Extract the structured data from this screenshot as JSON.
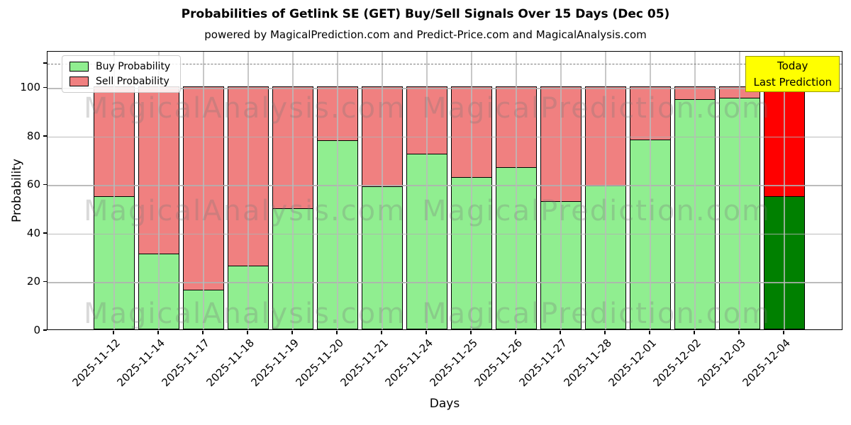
{
  "chart_data": {
    "type": "bar",
    "stacked": true,
    "title": "Probabilities of Getlink SE (GET) Buy/Sell Signals Over 15 Days (Dec 05)",
    "subtitle": "powered by MagicalPrediction.com and Predict-Price.com and MagicalAnalysis.com",
    "xlabel": "Days",
    "ylabel": "Probability",
    "categories": [
      "2025-11-12",
      "2025-11-14",
      "2025-11-17",
      "2025-11-18",
      "2025-11-19",
      "2025-11-20",
      "2025-11-21",
      "2025-11-24",
      "2025-11-25",
      "2025-11-26",
      "2025-11-27",
      "2025-11-28",
      "2025-12-01",
      "2025-12-02",
      "2025-12-03",
      "2025-12-04"
    ],
    "series": [
      {
        "name": "Buy Probability",
        "color": "#90EE90",
        "values": [
          55,
          31.5,
          16.5,
          26.5,
          50,
          78,
          59,
          72.5,
          63,
          67,
          53,
          59.5,
          78.5,
          95,
          95.5,
          55
        ]
      },
      {
        "name": "Sell Probability",
        "color": "#F08080",
        "values": [
          45,
          68.5,
          83.5,
          73.5,
          50,
          22,
          41,
          27.5,
          37,
          33,
          47,
          40.5,
          21.5,
          5,
          4.5,
          45
        ]
      }
    ],
    "today_bar": {
      "category": "2025-12-04",
      "buy_color": "#008000",
      "sell_color": "#FF0000"
    },
    "annotation": {
      "line1": "Today",
      "line2": "Last Prediction",
      "bg_color": "#FFFF00"
    },
    "watermarks": {
      "left": "MagicalAnalysis.com",
      "right": "MagicalPrediction.com"
    },
    "ylim": [
      0,
      115
    ],
    "yticks": [
      0,
      20,
      40,
      60,
      80,
      100
    ],
    "dashed_line_y": 110,
    "grid": true,
    "bar_edge_color": "#000000",
    "legend_position": "upper-left"
  }
}
